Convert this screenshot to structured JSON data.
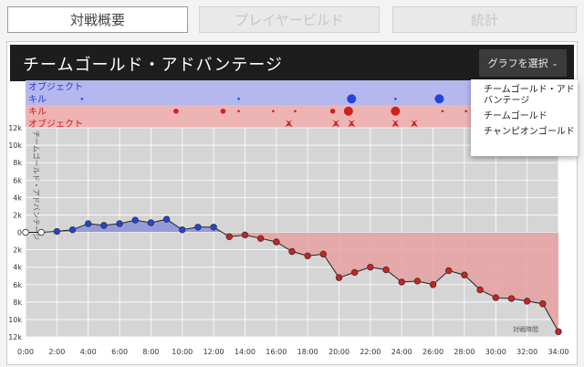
{
  "tabs": [
    {
      "label": "対戦概要",
      "active": true
    },
    {
      "label": "プレイヤービルド",
      "active": false
    },
    {
      "label": "統計",
      "active": false
    }
  ],
  "header": {
    "title": "チームゴールド・アドバンテージ",
    "select_label": "グラフを選択"
  },
  "dropdown": {
    "options": [
      "チームゴールド・アドバンテージ",
      "チームゴールド",
      "チャンピオンゴールド"
    ]
  },
  "timeline_rows": [
    "オブジェクト",
    "キル",
    "キル",
    "オブジェクト"
  ],
  "colors": {
    "blue": "#2443d8",
    "red": "#d02020",
    "blue_fill": "#8a90d8",
    "red_fill": "#e6a0a0",
    "plot_bg": "#d5d5d5"
  },
  "chart_data": {
    "type": "line",
    "ylabel": "チームゴールド・アドバンテージ",
    "xlabel": "対戦時間",
    "x_ticks": [
      "0:00",
      "2:00",
      "4:00",
      "6:00",
      "8:00",
      "10:00",
      "12:00",
      "14:00",
      "16:00",
      "18:00",
      "20:00",
      "22:00",
      "24:00",
      "26:00",
      "28:00",
      "30:00",
      "32:00",
      "34:00"
    ],
    "y_ticks": [
      "12k",
      "10k",
      "8k",
      "6k",
      "4k",
      "2k",
      "0",
      "2k",
      "4k",
      "6k",
      "8k",
      "10k",
      "12k"
    ],
    "ylim": [
      -12000,
      12000
    ],
    "xlim": [
      0,
      34
    ],
    "x": [
      0,
      1,
      2,
      3,
      4,
      5,
      6,
      7,
      8,
      9,
      10,
      11,
      12,
      13,
      14,
      15,
      16,
      17,
      18,
      19,
      20,
      21,
      22,
      23,
      24,
      25,
      26,
      27,
      28,
      29,
      30,
      31,
      32,
      33,
      34
    ],
    "values": [
      0,
      0,
      100,
      300,
      1000,
      800,
      1000,
      1400,
      1100,
      1500,
      300,
      600,
      600,
      -500,
      -300,
      -700,
      -1100,
      -2200,
      -2700,
      -2500,
      -5200,
      -4600,
      -4000,
      -4300,
      -5700,
      -5600,
      -6000,
      -4400,
      -4900,
      -6600,
      -7500,
      -7600,
      -7900,
      -8200,
      -11400
    ],
    "events": {
      "blue_objective": [],
      "blue_kill": [
        {
          "t": 3.6,
          "size": 1
        },
        {
          "t": 13.6,
          "size": 1
        },
        {
          "t": 20.8,
          "size": 3
        },
        {
          "t": 23.6,
          "size": 1
        },
        {
          "t": 26.4,
          "size": 3
        }
      ],
      "red_kill": [
        {
          "t": 9.6,
          "size": 2
        },
        {
          "t": 12.6,
          "size": 2
        },
        {
          "t": 13.6,
          "size": 1
        },
        {
          "t": 15.8,
          "size": 1
        },
        {
          "t": 17.2,
          "size": 1
        },
        {
          "t": 19.6,
          "size": 2
        },
        {
          "t": 20.6,
          "size": 3
        },
        {
          "t": 23.6,
          "size": 3
        },
        {
          "t": 26.6,
          "size": 1
        },
        {
          "t": 28.1,
          "size": 1
        }
      ],
      "red_objective": [
        16.8,
        19.8,
        20.8,
        23.6,
        24.8
      ]
    }
  }
}
